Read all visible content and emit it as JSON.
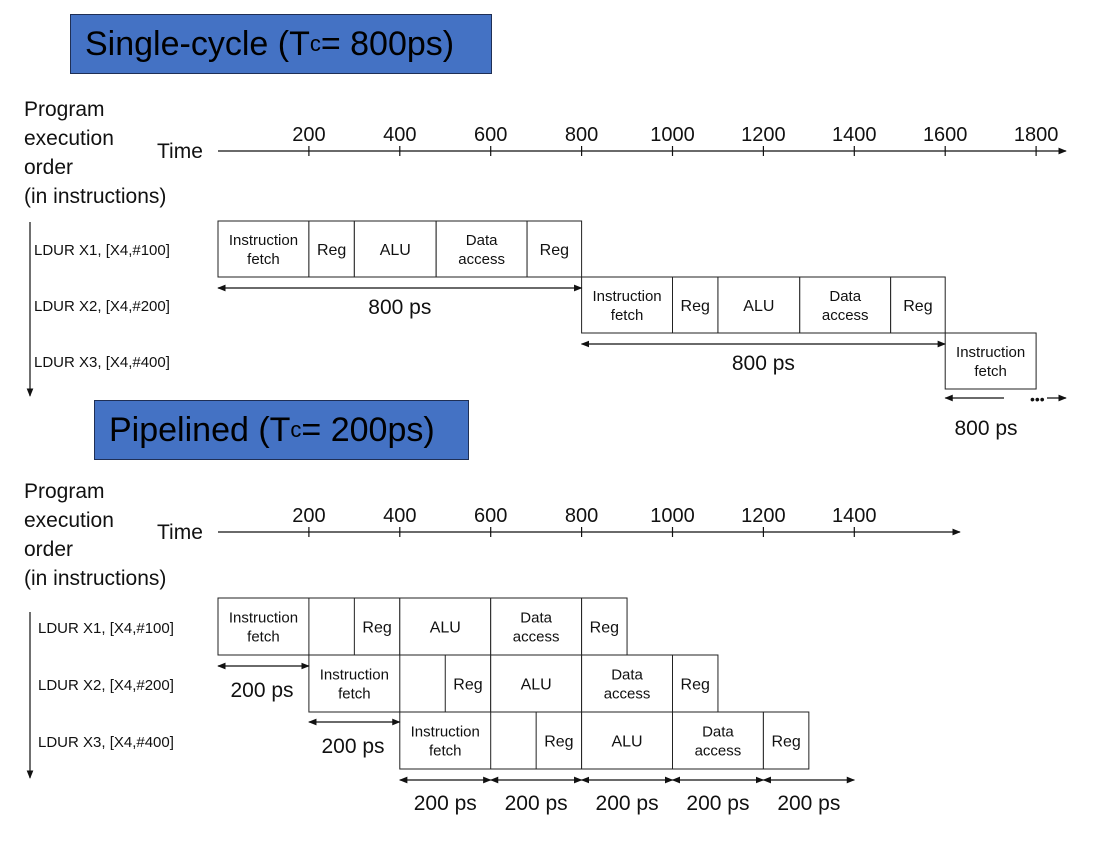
{
  "single": {
    "title_pre": "Single-cycle (T",
    "title_sub": "c",
    "title_post": "= 800ps)",
    "axis_label_lines": [
      "Program",
      "execution",
      "order",
      "(in instructions)"
    ],
    "time_label": "Time",
    "ticks": [
      "200",
      "400",
      "600",
      "800",
      "1000",
      "1200",
      "1400",
      "1600",
      "1800"
    ],
    "instructions": [
      "LDUR X1, [X4,#100]",
      "LDUR X2, [X4,#200]",
      "LDUR X3, [X4,#400]"
    ],
    "spans": [
      "800 ps",
      "800 ps",
      "800 ps"
    ],
    "ellipsis": "•••"
  },
  "pipelined": {
    "title_pre": "Pipelined (T",
    "title_sub": "c",
    "title_post": "= 200ps)",
    "axis_label_lines": [
      "Program",
      "execution",
      "order",
      "(in instructions)"
    ],
    "time_label": "Time",
    "ticks": [
      "200",
      "400",
      "600",
      "800",
      "1000",
      "1200",
      "1400"
    ],
    "instructions": [
      "LDUR X1, [X4,#100]",
      "LDUR X2, [X4,#200]",
      "LDUR X3, [X4,#400]"
    ],
    "spans": [
      "200 ps",
      "200 ps",
      "200 ps",
      "200 ps",
      "200 ps",
      "200 ps",
      "200 ps"
    ]
  },
  "stages": {
    "fetch": [
      "Instruction",
      "fetch"
    ],
    "reg": "Reg",
    "alu": "ALU",
    "data": [
      "Data",
      "access"
    ]
  }
}
